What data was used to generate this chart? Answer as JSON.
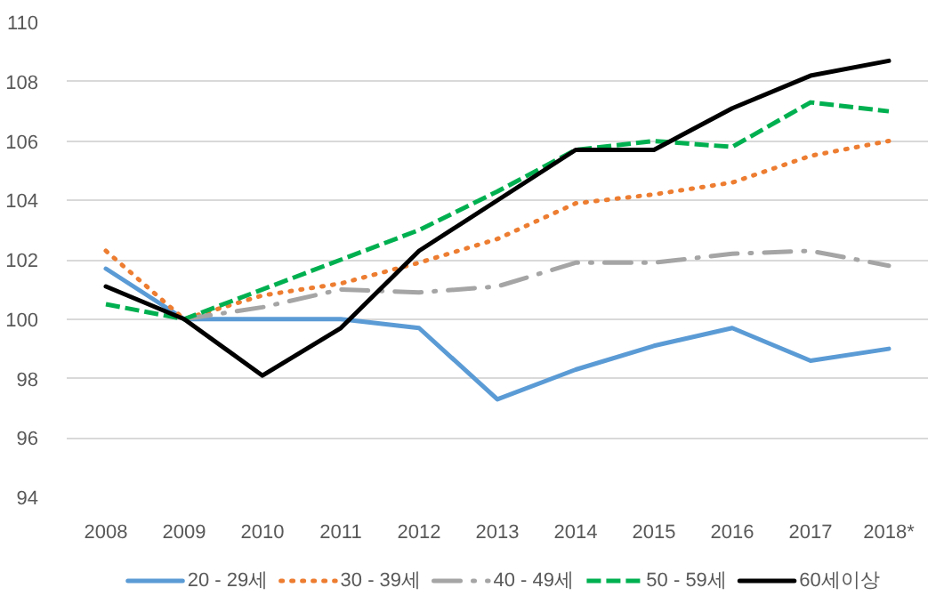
{
  "chart_data": {
    "type": "line",
    "categories": [
      "2008",
      "2009",
      "2010",
      "2011",
      "2012",
      "2013",
      "2014",
      "2015",
      "2016",
      "2017",
      "2018*"
    ],
    "ylim": [
      94,
      110
    ],
    "yticks": [
      94,
      96,
      98,
      100,
      102,
      104,
      106,
      108,
      110
    ],
    "grid": "y",
    "legend": "bottom",
    "marker": "none",
    "series": [
      {
        "name": "20 - 29세",
        "color": "#5b9bd5",
        "line_style": "solid",
        "values": [
          101.7,
          100.0,
          100.0,
          100.0,
          99.7,
          97.3,
          98.3,
          99.1,
          99.7,
          98.6,
          99.0
        ]
      },
      {
        "name": "30 - 39세",
        "color": "#ed7d31",
        "line_style": "dotted",
        "values": [
          102.3,
          100.0,
          100.8,
          101.2,
          101.9,
          102.7,
          103.9,
          104.2,
          104.6,
          105.5,
          106.0
        ]
      },
      {
        "name": "40 - 49세",
        "color": "#a5a5a5",
        "line_style": "dashdot",
        "values": [
          null,
          100.0,
          100.4,
          101.0,
          100.9,
          101.1,
          101.9,
          101.9,
          102.2,
          102.3,
          101.8
        ]
      },
      {
        "name": "50 - 59세",
        "color": "#00b050",
        "line_style": "dashed",
        "values": [
          100.5,
          100.0,
          101.0,
          102.0,
          103.0,
          104.3,
          105.7,
          106.0,
          105.8,
          107.3,
          107.0
        ]
      },
      {
        "name": "60세이상",
        "color": "#000000",
        "line_style": "solid",
        "values": [
          101.1,
          100.0,
          98.1,
          99.7,
          102.3,
          104.0,
          105.7,
          105.7,
          107.1,
          108.2,
          108.7
        ]
      }
    ]
  }
}
